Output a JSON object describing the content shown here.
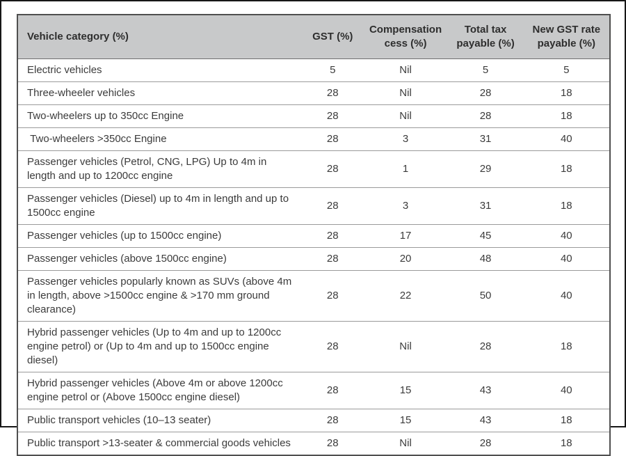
{
  "styles": {
    "frame_border": "#161616",
    "table_border": "#4f4f4f",
    "row_divider": "#9a9a9a",
    "header_bg": "#c8c9ca",
    "text_color": "#3b3b3b"
  },
  "chart_data": {
    "type": "table",
    "columns": [
      "Vehicle category (%)",
      "GST (%)",
      "Compensation cess (%)",
      "Total tax payable (%)",
      "New GST rate payable (%)"
    ],
    "rows": [
      {
        "category": "Electric vehicles",
        "gst": "5",
        "cess": "Nil",
        "total": "5",
        "new_rate": "5"
      },
      {
        "category": "Three-wheeler vehicles",
        "gst": "28",
        "cess": "Nil",
        "total": "28",
        "new_rate": "18"
      },
      {
        "category": "Two-wheelers up to 350cc Engine",
        "gst": "28",
        "cess": "Nil",
        "total": "28",
        "new_rate": "18"
      },
      {
        "category": " Two-wheelers >350cc Engine",
        "gst": "28",
        "cess": "3",
        "total": "31",
        "new_rate": "40"
      },
      {
        "category": "Passenger vehicles (Petrol, CNG, LPG) Up to 4m in length and up to 1200cc engine",
        "gst": "28",
        "cess": "1",
        "total": "29",
        "new_rate": "18"
      },
      {
        "category": "Passenger vehicles (Diesel) up to 4m in length and up to 1500cc engine",
        "gst": "28",
        "cess": "3",
        "total": "31",
        "new_rate": "18"
      },
      {
        "category": "Passenger vehicles (up to 1500cc engine)",
        "gst": "28",
        "cess": "17",
        "total": "45",
        "new_rate": "40"
      },
      {
        "category": "Passenger vehicles (above 1500cc engine)",
        "gst": "28",
        "cess": "20",
        "total": "48",
        "new_rate": "40"
      },
      {
        "category": "Passenger vehicles popularly known as SUVs (above 4m in length, above >1500cc engine & >170 mm ground clearance)",
        "gst": "28",
        "cess": "22",
        "total": "50",
        "new_rate": "40"
      },
      {
        "category": "Hybrid passenger vehicles (Up to 4m and up to 1200cc engine petrol) or (Up to 4m and up to 1500cc engine diesel)",
        "gst": "28",
        "cess": "Nil",
        "total": "28",
        "new_rate": "18"
      },
      {
        "category": "Hybrid passenger vehicles (Above 4m or above 1200cc engine petrol or (Above 1500cc engine diesel)",
        "gst": "28",
        "cess": "15",
        "total": "43",
        "new_rate": "40"
      },
      {
        "category": "Public transport vehicles (10–13 seater)",
        "gst": "28",
        "cess": "15",
        "total": "43",
        "new_rate": "18"
      },
      {
        "category": "Public transport >13-seater & commercial goods vehicles",
        "gst": "28",
        "cess": "Nil",
        "total": "28",
        "new_rate": "18"
      }
    ]
  }
}
